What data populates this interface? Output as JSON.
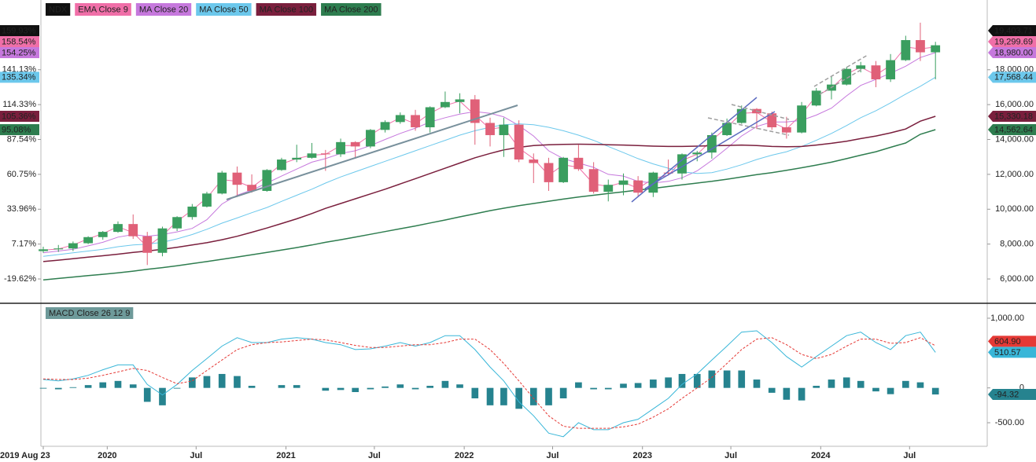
{
  "chart_data": [
    {
      "type": "candlestick",
      "name": "NDX",
      "color": "#111111",
      "text_color": "#ffffff",
      "up_color": "#3a9e5f",
      "down_color": "#e06078",
      "last_label": "19,403.71",
      "last_pct_label": "159.93%",
      "x": [
        "2019-08-23",
        "2019-09-23",
        "2019-10-23",
        "2019-11-23",
        "2019-12-23",
        "2020-01-23",
        "2020-02-23",
        "2020-03-23",
        "2020-04-23",
        "2020-05-23",
        "2020-06-23",
        "2020-07-23",
        "2020-08-23",
        "2020-09-23",
        "2020-10-23",
        "2020-11-23",
        "2020-12-23",
        "2021-01-23",
        "2021-02-23",
        "2021-03-23",
        "2021-04-23",
        "2021-05-23",
        "2021-06-23",
        "2021-07-23",
        "2021-08-23",
        "2021-09-23",
        "2021-10-23",
        "2021-11-23",
        "2021-12-23",
        "2022-01-23",
        "2022-02-23",
        "2022-03-23",
        "2022-04-23",
        "2022-05-23",
        "2022-06-23",
        "2022-07-23",
        "2022-08-23",
        "2022-09-23",
        "2022-10-23",
        "2022-11-23",
        "2022-12-23",
        "2023-01-23",
        "2023-02-23",
        "2023-03-23",
        "2023-04-23",
        "2023-05-23",
        "2023-06-23",
        "2023-07-23",
        "2023-08-23",
        "2023-09-23",
        "2023-10-23",
        "2023-11-23",
        "2023-12-23",
        "2024-01-23",
        "2024-02-23",
        "2024-03-23",
        "2024-04-23",
        "2024-05-23",
        "2024-06-23",
        "2024-07-23",
        "2024-08-23"
      ],
      "open": [
        7600,
        7700,
        7750,
        8050,
        8400,
        8700,
        9150,
        8450,
        7500,
        8900,
        9550,
        10150,
        10900,
        12100,
        11400,
        11050,
        12250,
        12850,
        12950,
        13200,
        13150,
        13850,
        13600,
        14550,
        15000,
        15400,
        14700,
        15850,
        16150,
        16300,
        14950,
        14250,
        14850,
        12850,
        12650,
        11550,
        12950,
        12300,
        11000,
        11400,
        11650,
        10950,
        12100,
        12050,
        13150,
        13250,
        14250,
        14950,
        15750,
        15500,
        14700,
        14400,
        15950,
        16800,
        17150,
        18050,
        18250,
        17450,
        18550,
        19700,
        19000
      ],
      "high": [
        7850,
        7950,
        8150,
        8450,
        8750,
        9300,
        9700,
        8700,
        9000,
        9600,
        10300,
        11000,
        12200,
        12450,
        12000,
        12300,
        12950,
        13700,
        13800,
        13400,
        14050,
        13900,
        14600,
        15100,
        15550,
        15700,
        15900,
        16750,
        16650,
        16550,
        15250,
        15250,
        15100,
        13200,
        12950,
        13000,
        13700,
        12700,
        11700,
        12050,
        11900,
        12150,
        12850,
        13200,
        13350,
        14400,
        15200,
        15950,
        15800,
        15600,
        15300,
        16150,
        16950,
        17650,
        18150,
        18450,
        18500,
        18900,
        19950,
        20700,
        19600
      ],
      "low": [
        7500,
        7550,
        7600,
        8000,
        8250,
        8650,
        8300,
        6800,
        7300,
        8750,
        9400,
        10100,
        10850,
        10700,
        10950,
        11000,
        12200,
        12700,
        12900,
        12200,
        13000,
        12900,
        13500,
        14400,
        14900,
        14500,
        14400,
        15800,
        15500,
        13700,
        13600,
        13000,
        12700,
        11500,
        11050,
        11500,
        12200,
        10900,
        10450,
        10800,
        10700,
        10700,
        11950,
        11700,
        12750,
        12900,
        14200,
        14900,
        14600,
        14550,
        14050,
        14350,
        15900,
        16300,
        17100,
        17850,
        17000,
        17300,
        18500,
        18500,
        17450
      ],
      "close": [
        7700,
        7750,
        8050,
        8400,
        8700,
        9150,
        8450,
        7500,
        8900,
        9550,
        10150,
        10900,
        12100,
        11400,
        11050,
        12250,
        12850,
        12950,
        13200,
        13150,
        13850,
        13600,
        14550,
        15000,
        15400,
        14700,
        15850,
        16150,
        16300,
        14950,
        14250,
        14850,
        12850,
        12650,
        11550,
        12950,
        12300,
        11000,
        11400,
        11650,
        10950,
        12100,
        12050,
        13150,
        13250,
        14250,
        14950,
        15750,
        15500,
        14700,
        14400,
        15950,
        16800,
        17150,
        18050,
        18250,
        17450,
        18550,
        19700,
        19000,
        19403.71
      ],
      "series": [
        {
          "name": "EMA Close 9",
          "color": "#f06fa8",
          "text_color": "#222222",
          "last_label": "19,299.69",
          "last_pct_label": "158.54%",
          "values": [
            7650,
            7720,
            7950,
            8300,
            8600,
            9000,
            8650,
            7850,
            8500,
            9300,
            9950,
            10650,
            11700,
            11600,
            11250,
            11900,
            12600,
            12900,
            13100,
            13150,
            13650,
            13650,
            14250,
            14800,
            15250,
            14900,
            15500,
            15950,
            16200,
            15400,
            14600,
            14700,
            13500,
            12900,
            11950,
            12550,
            12400,
            11450,
            11300,
            11550,
            11200,
            11750,
            11950,
            12800,
            13150,
            13950,
            14700,
            15500,
            15550,
            15000,
            14600,
            15450,
            16500,
            16950,
            17750,
            18150,
            17700,
            18250,
            19300,
            19200,
            19299.69
          ]
        },
        {
          "name": "MA Close 20",
          "color": "#c678dd",
          "text_color": "#222222",
          "last_label": "18,980.00",
          "last_pct_label": "154.25%",
          "values": [
            7500,
            7600,
            7700,
            7900,
            8100,
            8400,
            8550,
            8450,
            8550,
            8700,
            8900,
            9400,
            10300,
            10800,
            11100,
            11500,
            11900,
            12300,
            12700,
            12900,
            13200,
            13350,
            13650,
            14000,
            14350,
            14650,
            15000,
            15250,
            15450,
            15600,
            15500,
            15300,
            14800,
            14200,
            13350,
            12900,
            12650,
            12400,
            12000,
            11900,
            11600,
            11500,
            11600,
            11800,
            12200,
            12800,
            13500,
            14200,
            14750,
            15000,
            15000,
            15100,
            15400,
            15800,
            16500,
            17100,
            17450,
            17800,
            18200,
            18700,
            18980.0
          ]
        },
        {
          "name": "MA Close 50",
          "color": "#6cc8ec",
          "text_color": "#222222",
          "last_label": "17,568.44",
          "last_pct_label": "135.34%",
          "values": [
            7300,
            7400,
            7500,
            7600,
            7700,
            7850,
            7950,
            8000,
            8100,
            8300,
            8550,
            8850,
            9200,
            9500,
            9800,
            10100,
            10450,
            10800,
            11150,
            11500,
            11850,
            12150,
            12450,
            12750,
            13050,
            13350,
            13650,
            13950,
            14250,
            14500,
            14700,
            14850,
            14900,
            14850,
            14700,
            14500,
            14250,
            13950,
            13600,
            13250,
            12900,
            12600,
            12350,
            12150,
            12050,
            12100,
            12300,
            12550,
            12850,
            13100,
            13300,
            13600,
            13950,
            14350,
            14800,
            15250,
            15650,
            16100,
            16600,
            17050,
            17568.44
          ]
        },
        {
          "name": "MA Close 100",
          "color": "#7a1f3d",
          "text_color": "#ffffff",
          "last_label": "15,330.18",
          "last_pct_label": "105.36%",
          "values": [
            7000,
            7080,
            7160,
            7250,
            7330,
            7420,
            7520,
            7600,
            7700,
            7820,
            7950,
            8080,
            8250,
            8450,
            8680,
            8920,
            9180,
            9450,
            9750,
            10050,
            10330,
            10600,
            10880,
            11150,
            11450,
            11750,
            12050,
            12350,
            12650,
            12950,
            13200,
            13400,
            13550,
            13650,
            13700,
            13720,
            13730,
            13720,
            13700,
            13680,
            13650,
            13620,
            13600,
            13600,
            13620,
            13640,
            13660,
            13680,
            13650,
            13600,
            13580,
            13600,
            13680,
            13780,
            13900,
            14050,
            14200,
            14380,
            14600,
            15050,
            15330.18
          ]
        },
        {
          "name": "MA Close 200",
          "color": "#2e7d4f",
          "text_color": "#ffffff",
          "last_label": "14,562.64",
          "last_pct_label": "95.08%",
          "values": [
            5950,
            6030,
            6110,
            6190,
            6270,
            6350,
            6450,
            6550,
            6650,
            6760,
            6880,
            7000,
            7130,
            7260,
            7390,
            7520,
            7660,
            7800,
            7950,
            8100,
            8250,
            8400,
            8560,
            8720,
            8880,
            9040,
            9210,
            9380,
            9560,
            9740,
            9920,
            10060,
            10200,
            10330,
            10460,
            10580,
            10700,
            10800,
            10900,
            11000,
            11100,
            11200,
            11300,
            11400,
            11500,
            11600,
            11720,
            11850,
            11980,
            12100,
            12230,
            12380,
            12530,
            12700,
            12900,
            13100,
            13300,
            13550,
            13800,
            14300,
            14562.64
          ]
        }
      ],
      "xlim": [
        "2019-08-23",
        "2024-12-07"
      ],
      "xticks": [
        {
          "value": "2019-08-23",
          "label": "2019 Aug 23"
        },
        {
          "value": "2020-01-01",
          "label": "2020"
        },
        {
          "value": "2020-07-01",
          "label": "Jul"
        },
        {
          "value": "2021-01-01",
          "label": "2021"
        },
        {
          "value": "2021-07-01",
          "label": "Jul"
        },
        {
          "value": "2022-01-01",
          "label": "2022"
        },
        {
          "value": "2022-07-01",
          "label": "Jul"
        },
        {
          "value": "2023-01-01",
          "label": "2023"
        },
        {
          "value": "2023-07-01",
          "label": "Jul"
        },
        {
          "value": "2024-01-01",
          "label": "2024"
        },
        {
          "value": "2024-07-01",
          "label": "Jul"
        }
      ],
      "ylim": [
        4650,
        22000
      ],
      "yticks": [
        {
          "value": 6000,
          "label": "6,000.00"
        },
        {
          "value": 8000,
          "label": "8,000.00"
        },
        {
          "value": 10000,
          "label": "10,000.00"
        },
        {
          "value": 12000,
          "label": "12,000.00"
        },
        {
          "value": 14000,
          "label": "14,000.00"
        },
        {
          "value": 16000,
          "label": "16,000.00"
        },
        {
          "value": 18000,
          "label": "18,000.00"
        }
      ],
      "y2lim": [
        -37.71,
        194.71
      ],
      "y2ticks": [
        {
          "value": -19.62,
          "label": "-19.62%"
        },
        {
          "value": 7.17,
          "label": "7.17%"
        },
        {
          "value": 33.96,
          "label": "33.96%"
        },
        {
          "value": 60.75,
          "label": "60.75%"
        },
        {
          "value": 87.54,
          "label": "87.54%"
        },
        {
          "value": 114.33,
          "label": "114.33%"
        },
        {
          "value": 141.13,
          "label": "141.13%"
        }
      ],
      "grid": false
    },
    {
      "type": "macd",
      "title": "MACD Close 26 12 9",
      "title_color": "#6e9a9a",
      "series": [
        {
          "color": "#38b6d8",
          "text_color": "#222222",
          "dashed": false,
          "last_label": "510.57",
          "values": [
            120,
            100,
            130,
            180,
            260,
            330,
            330,
            50,
            -100,
            50,
            250,
            420,
            600,
            720,
            650,
            650,
            700,
            720,
            700,
            650,
            620,
            550,
            560,
            600,
            650,
            600,
            650,
            750,
            750,
            550,
            300,
            100,
            -200,
            -400,
            -650,
            -700,
            -500,
            -600,
            -600,
            -500,
            -450,
            -300,
            -150,
            50,
            200,
            400,
            600,
            800,
            820,
            650,
            450,
            300,
            450,
            600,
            750,
            800,
            650,
            550,
            750,
            800,
            510.57
          ]
        },
        {
          "color": "#e53935",
          "text_color": "#ffffff",
          "dashed": true,
          "last_label": "604.90",
          "values": [
            130,
            120,
            120,
            140,
            180,
            230,
            280,
            250,
            150,
            60,
            100,
            250,
            400,
            550,
            620,
            650,
            660,
            680,
            700,
            690,
            650,
            610,
            580,
            580,
            600,
            620,
            620,
            650,
            700,
            700,
            550,
            350,
            100,
            -150,
            -400,
            -550,
            -580,
            -580,
            -580,
            -560,
            -520,
            -420,
            -300,
            -150,
            0,
            150,
            350,
            550,
            700,
            720,
            620,
            480,
            420,
            480,
            600,
            700,
            700,
            640,
            650,
            720,
            604.9
          ]
        }
      ],
      "histogram": {
        "color": "#26838f",
        "text_color": "#ffffff",
        "last_label": "-94.32",
        "values": [
          -10,
          -20,
          10,
          40,
          80,
          100,
          50,
          -200,
          -250,
          -10,
          150,
          170,
          200,
          170,
          30,
          0,
          40,
          40,
          0,
          -40,
          -30,
          -60,
          -20,
          20,
          50,
          -20,
          30,
          100,
          50,
          -150,
          -250,
          -250,
          -300,
          -250,
          -250,
          -150,
          80,
          -20,
          -20,
          60,
          70,
          120,
          150,
          200,
          200,
          250,
          250,
          250,
          120,
          -70,
          -170,
          -180,
          30,
          120,
          150,
          100,
          -50,
          -90,
          100,
          80,
          -94.32
        ]
      },
      "ylim": [
        -838,
        1203
      ],
      "yticks": [
        {
          "value": 1000,
          "label": "1,000.00"
        },
        0,
        {
          "value": -500,
          "label": "-500.00"
        }
      ],
      "grid": false
    }
  ]
}
